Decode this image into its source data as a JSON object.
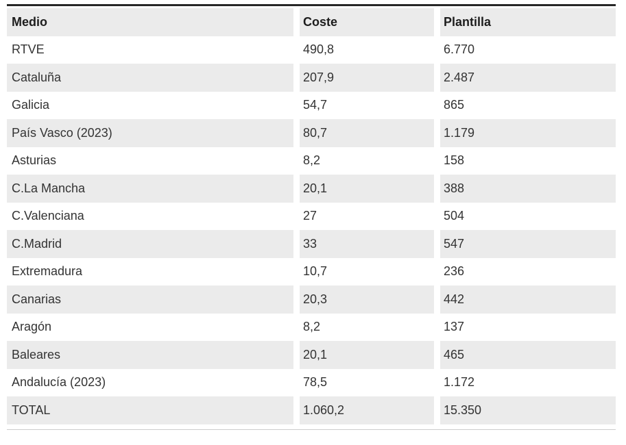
{
  "chart_data": {
    "type": "table",
    "columns": [
      "Medio",
      "Coste",
      "Plantilla"
    ],
    "rows": [
      [
        "RTVE",
        "490,8",
        "6.770"
      ],
      [
        "Cataluña",
        "207,9",
        "2.487"
      ],
      [
        "Galicia",
        "54,7",
        "865"
      ],
      [
        "País Vasco (2023)",
        "80,7",
        "1.179"
      ],
      [
        "Asturias",
        "8,2",
        "158"
      ],
      [
        "C.La Mancha",
        "20,1",
        "388"
      ],
      [
        "C.Valenciana",
        "27",
        "504"
      ],
      [
        "C.Madrid",
        "33",
        "547"
      ],
      [
        "Extremadura",
        "10,7",
        "236"
      ],
      [
        "Canarias",
        "20,3",
        "442"
      ],
      [
        "Aragón",
        "8,2",
        "137"
      ],
      [
        "Baleares",
        "20,1",
        "465"
      ],
      [
        "Andalucía (2023)",
        "78,5",
        "1.172"
      ],
      [
        "TOTAL",
        "1.060,2",
        "15.350"
      ]
    ]
  },
  "colors": {
    "stripe": "#ebebeb",
    "top_border": "#262626",
    "bottom_border": "#cccccc",
    "header_text": "#1d1d1d",
    "body_text": "#333333"
  }
}
